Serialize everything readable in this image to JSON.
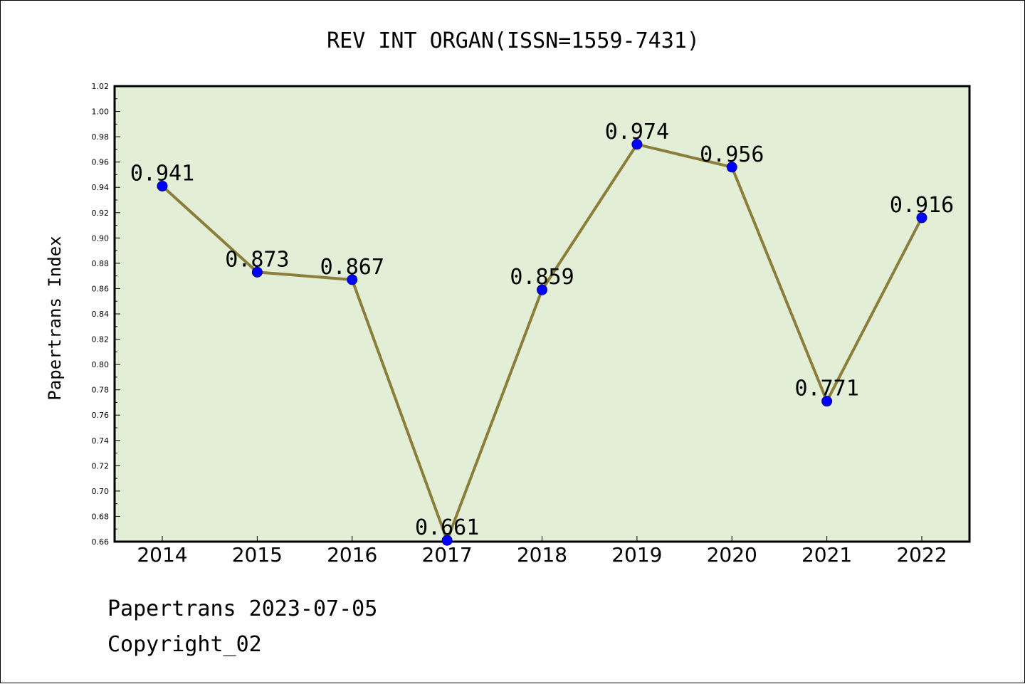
{
  "chart_data": {
    "type": "line",
    "title": "REV INT ORGAN(ISSN=1559-7431)",
    "xlabel": "",
    "ylabel": "Papertrans Index",
    "categories": [
      "2014",
      "2015",
      "2016",
      "2017",
      "2018",
      "2019",
      "2020",
      "2021",
      "2022"
    ],
    "series": [
      {
        "values": [
          0.941,
          0.873,
          0.867,
          0.661,
          0.859,
          0.974,
          0.956,
          0.771,
          0.916
        ],
        "line_color": "#8b7d3a",
        "marker_color": "#0000ff"
      }
    ],
    "data_labels": [
      "0.941",
      "0.873",
      "0.867",
      "0.661",
      "0.859",
      "0.974",
      "0.956",
      "0.771",
      "0.916"
    ],
    "ylim": [
      0.66,
      1.02
    ],
    "yticks": [
      "0.66",
      "0.68",
      "0.70",
      "0.72",
      "0.74",
      "0.76",
      "0.78",
      "0.80",
      "0.82",
      "0.84",
      "0.86",
      "0.88",
      "0.90",
      "0.92",
      "0.94",
      "0.96",
      "0.98",
      "1.00",
      "1.02"
    ],
    "grid": false,
    "plot_background": "#e2efd6"
  },
  "footer": {
    "line1": "Papertrans 2023-07-05",
    "line2": "Copyright_02"
  }
}
